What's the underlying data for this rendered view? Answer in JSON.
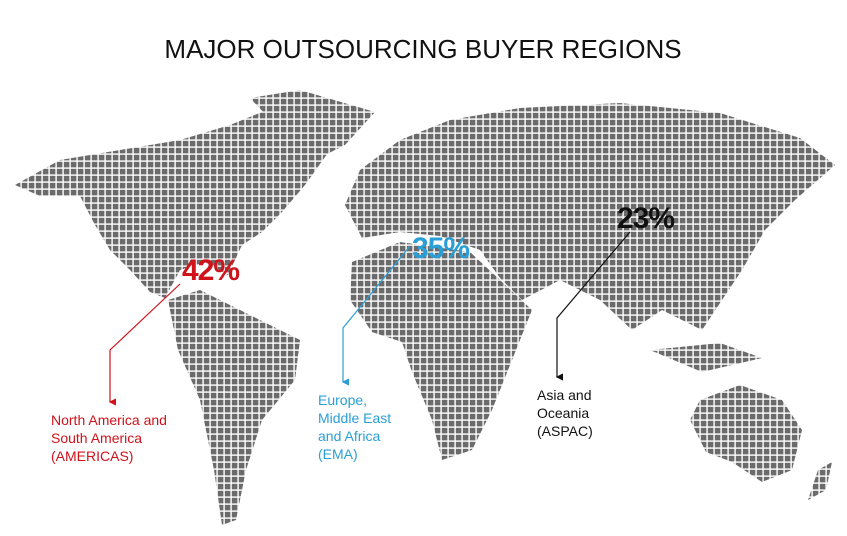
{
  "title": "MAJOR OUTSOURCING BUYER REGIONS",
  "regions": [
    {
      "percent": "42%",
      "label": [
        "North America and",
        "South America",
        "(AMERICAS)"
      ],
      "color": "#d0121b"
    },
    {
      "percent": "35%",
      "label": [
        "Europe,",
        "Middle East",
        "and Africa",
        "(EMA)"
      ],
      "color": "#2a9fd6"
    },
    {
      "percent": "23%",
      "label": [
        "Asia and",
        "Oceania",
        "(ASPAC)"
      ],
      "color": "#111111"
    }
  ]
}
